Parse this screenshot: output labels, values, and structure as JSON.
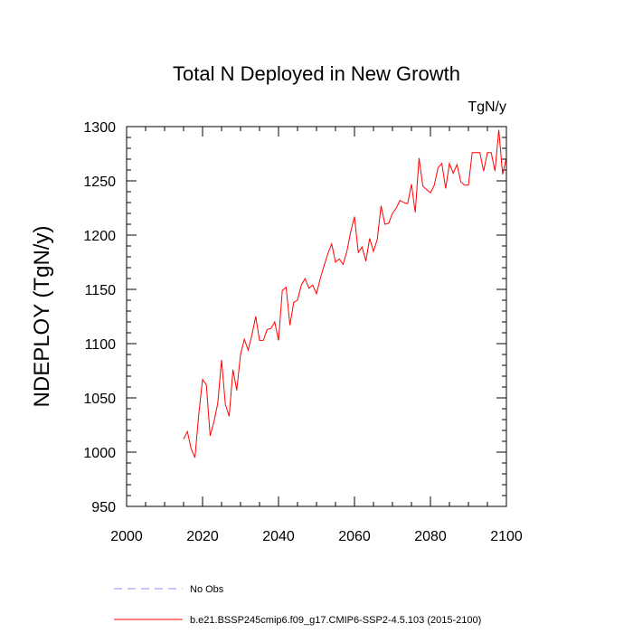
{
  "chart_data": {
    "type": "line",
    "title": "Total N Deployed in New Growth",
    "units": "TgN/y",
    "xlabel": "",
    "ylabel": "NDEPLOY  (TgN/y)",
    "xlim": [
      2000,
      2100
    ],
    "ylim": [
      950,
      1300
    ],
    "x_ticks": [
      2000,
      2020,
      2040,
      2060,
      2080,
      2100
    ],
    "y_ticks": [
      950,
      1000,
      1050,
      1100,
      1150,
      1200,
      1250,
      1300
    ],
    "x_minor_step": 5,
    "y_minor_step": 10,
    "series": [
      {
        "name": "b.e21.BSSP245cmip6.f09_g17.CMIP6-SSP2-4.5.103 (2015-2100)",
        "color": "#ff0000",
        "style": "solid",
        "x": [
          2015,
          2016,
          2017,
          2018,
          2019,
          2020,
          2021,
          2022,
          2023,
          2024,
          2025,
          2026,
          2027,
          2028,
          2029,
          2030,
          2031,
          2032,
          2033,
          2034,
          2035,
          2036,
          2037,
          2038,
          2039,
          2040,
          2041,
          2042,
          2043,
          2044,
          2045,
          2046,
          2047,
          2048,
          2049,
          2050,
          2051,
          2052,
          2053,
          2054,
          2055,
          2056,
          2057,
          2058,
          2059,
          2060,
          2061,
          2062,
          2063,
          2064,
          2065,
          2066,
          2067,
          2068,
          2069,
          2070,
          2071,
          2072,
          2073,
          2074,
          2075,
          2076,
          2077,
          2078,
          2079,
          2080,
          2081,
          2082,
          2083,
          2084,
          2085,
          2086,
          2087,
          2088,
          2089,
          2090,
          2091,
          2092,
          2093,
          2094,
          2095,
          2096,
          2097,
          2098,
          2099,
          2100
        ],
        "values": [
          1012,
          1019,
          1003,
          995,
          1035,
          1067,
          1062,
          1015,
          1028,
          1045,
          1085,
          1044,
          1033,
          1076,
          1057,
          1090,
          1104,
          1094,
          1108,
          1125,
          1103,
          1103,
          1113,
          1114,
          1120,
          1103,
          1149,
          1152,
          1117,
          1138,
          1140,
          1154,
          1160,
          1151,
          1154,
          1146,
          1160,
          1172,
          1183,
          1192,
          1175,
          1178,
          1173,
          1185,
          1203,
          1217,
          1184,
          1189,
          1176,
          1197,
          1185,
          1196,
          1227,
          1210,
          1211,
          1220,
          1225,
          1232,
          1230,
          1229,
          1247,
          1221,
          1271,
          1245,
          1242,
          1239,
          1246,
          1262,
          1266,
          1243,
          1266,
          1257,
          1265,
          1249,
          1246,
          1246,
          1276,
          1276,
          1276,
          1259,
          1276,
          1276,
          1259,
          1297,
          1256,
          1271
        ]
      },
      {
        "name": "No Obs",
        "color": "#8a8aff",
        "style": "dashed",
        "x": [],
        "values": []
      }
    ]
  }
}
